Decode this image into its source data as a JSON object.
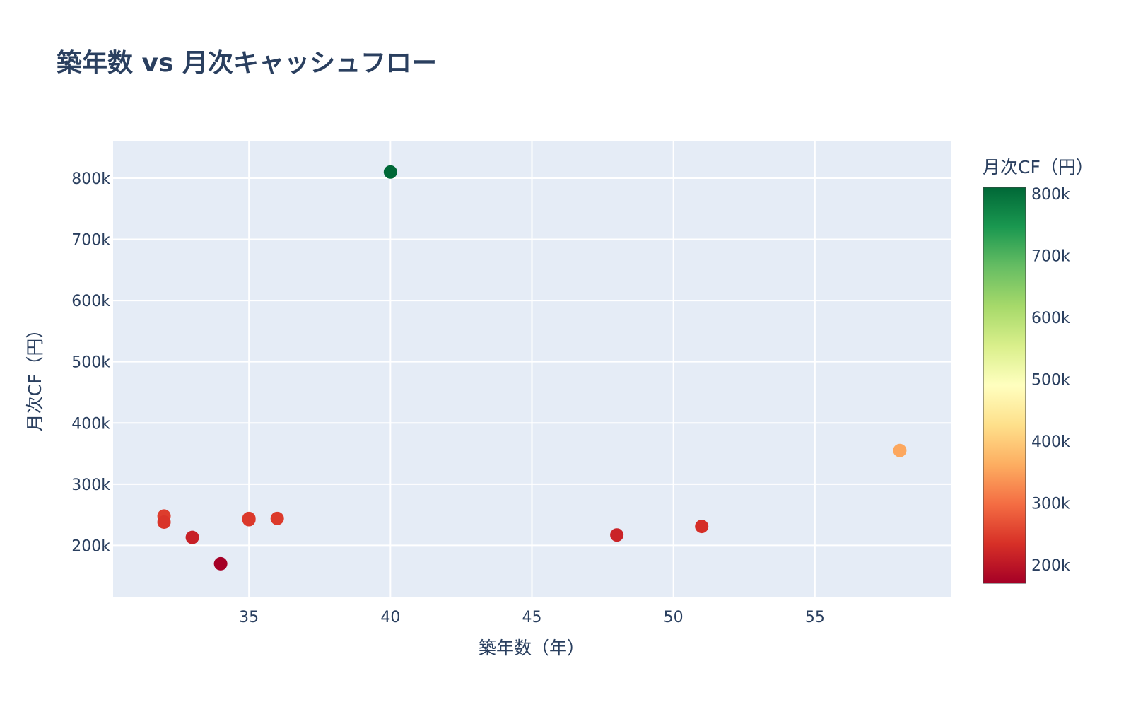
{
  "chart_data": {
    "type": "scatter",
    "title": "築年数 vs 月次キャッシュフロー",
    "xlabel": "築年数（年）",
    "ylabel": "月次CF（円）",
    "xlim": [
      30.2,
      59.8
    ],
    "ylim": [
      115000,
      860000
    ],
    "x_ticks": [
      35,
      40,
      45,
      50,
      55
    ],
    "y_ticks": [
      200000,
      300000,
      400000,
      500000,
      600000,
      700000,
      800000
    ],
    "x_tick_labels": [
      "35",
      "40",
      "45",
      "50",
      "55"
    ],
    "y_tick_labels": [
      "200k",
      "300k",
      "400k",
      "500k",
      "600k",
      "700k",
      "800k"
    ],
    "grid": true,
    "points": [
      {
        "x": 40,
        "y": 810000
      },
      {
        "x": 58,
        "y": 355000
      },
      {
        "x": 32,
        "y": 248000
      },
      {
        "x": 32,
        "y": 238000
      },
      {
        "x": 33,
        "y": 213000
      },
      {
        "x": 34,
        "y": 170000
      },
      {
        "x": 35,
        "y": 244000
      },
      {
        "x": 35,
        "y": 242000
      },
      {
        "x": 36,
        "y": 244000
      },
      {
        "x": 48,
        "y": 217000
      },
      {
        "x": 51,
        "y": 231000
      }
    ],
    "colorbar": {
      "title": "月次CF（円）",
      "range": [
        170000,
        810000
      ],
      "ticks": [
        200000,
        300000,
        400000,
        500000,
        600000,
        700000,
        800000
      ],
      "tick_labels": [
        "200k",
        "300k",
        "400k",
        "500k",
        "600k",
        "700k",
        "800k"
      ],
      "colorscale": [
        "#a50026",
        "#d73027",
        "#f46d43",
        "#fdae61",
        "#fee08b",
        "#ffffbf",
        "#d9ef8b",
        "#a6d96a",
        "#66bd63",
        "#1a9850",
        "#006837"
      ]
    },
    "colors": {
      "plot_bg": "#e5ecf6",
      "grid": "#ffffff",
      "text": "#2a3f5f"
    }
  }
}
